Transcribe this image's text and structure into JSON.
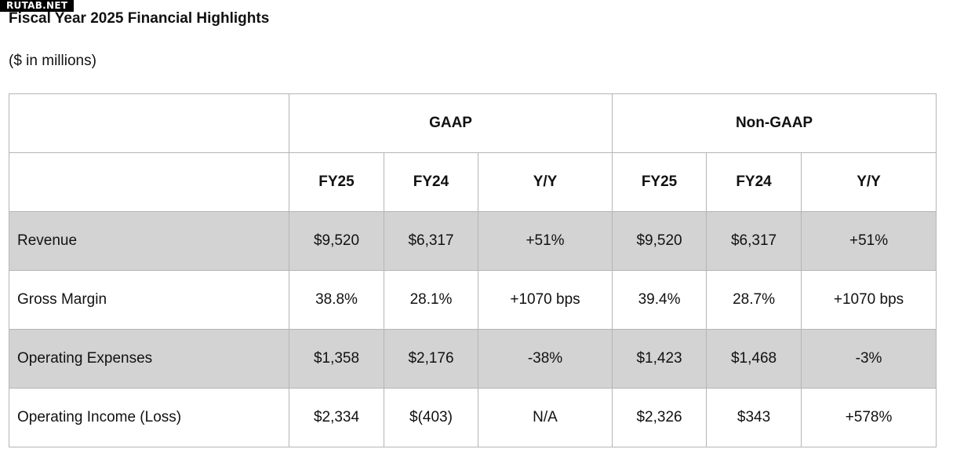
{
  "watermark": "RUTAB.NET",
  "title": "Fiscal Year 2025 Financial Highlights",
  "subtitle": "($ in millions)",
  "table": {
    "groups": [
      "GAAP",
      "Non-GAAP"
    ],
    "columns": [
      "FY25",
      "FY24",
      "Y/Y",
      "FY25",
      "FY24",
      "Y/Y"
    ],
    "rows": [
      {
        "label": "Revenue",
        "values": [
          "$9,520",
          "$6,317",
          "+51%",
          "$9,520",
          "$6,317",
          "+51%"
        ]
      },
      {
        "label": "Gross Margin",
        "values": [
          "38.8%",
          "28.1%",
          "+1070 bps",
          "39.4%",
          "28.7%",
          "+1070 bps"
        ]
      },
      {
        "label": "Operating Expenses",
        "values": [
          "$1,358",
          "$2,176",
          "-38%",
          "$1,423",
          "$1,468",
          "-3%"
        ]
      },
      {
        "label": "Operating Income (Loss)",
        "values": [
          "$2,334",
          "$(403)",
          "N/A",
          "$2,326",
          "$343",
          "+578%"
        ]
      }
    ]
  },
  "colors": {
    "shaded_row": "#d3d3d3",
    "border": "#b5b5b5",
    "watermark_bg": "#000000"
  }
}
